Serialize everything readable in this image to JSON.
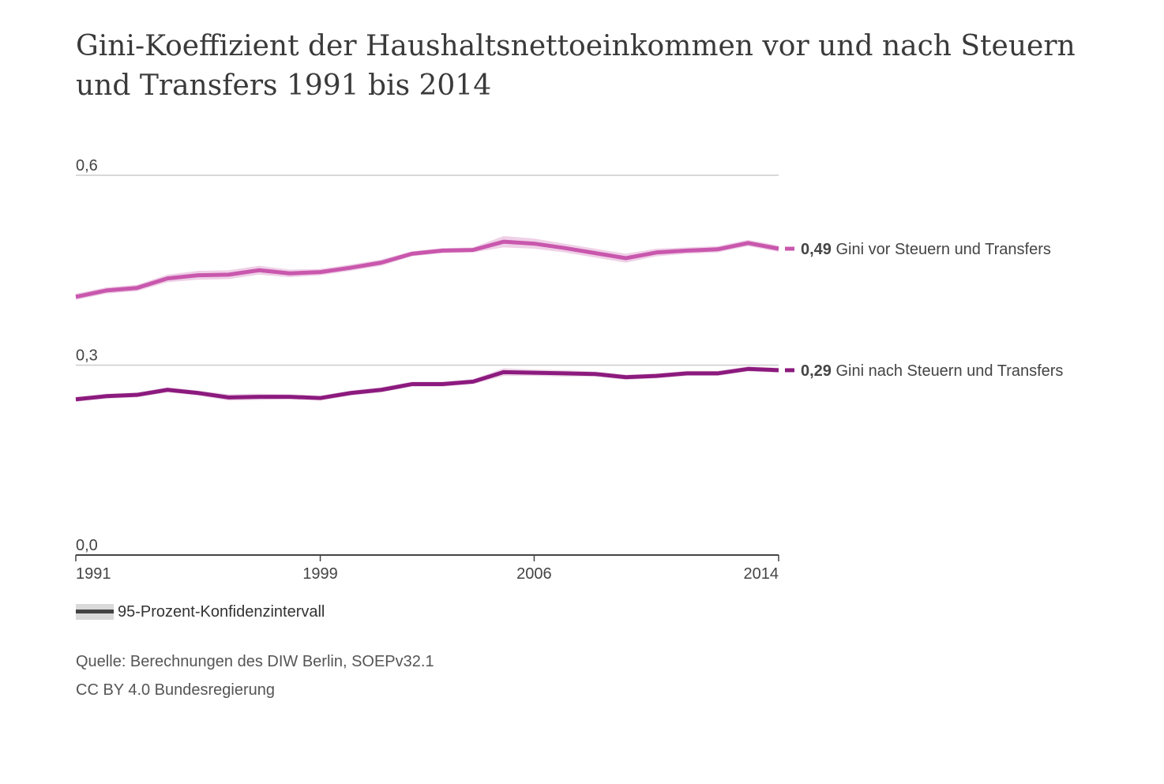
{
  "title": "Gini-Koeffizient der Haushaltsnettoeinkommen vor und nach Steuern und Transfers 1991 bis 2014",
  "colors": {
    "before": "#c957ad",
    "before_band": "#efd0e7",
    "after": "#8c1a7e",
    "after_band": "#ecd3e6",
    "grid": "#cccccc",
    "axis": "#444444",
    "text": "#444444"
  },
  "chart_data": {
    "type": "line",
    "title": "Gini-Koeffizient der Haushaltsnettoeinkommen vor und nach Steuern und Transfers 1991 bis 2014",
    "xlabel": "",
    "ylabel": "",
    "x": [
      1991,
      1992,
      1993,
      1994,
      1995,
      1996,
      1997,
      1998,
      1999,
      2000,
      2001,
      2002,
      2003,
      2004,
      2005,
      2006,
      2007,
      2008,
      2009,
      2010,
      2011,
      2012,
      2013,
      2014
    ],
    "xlim": [
      1991,
      2014
    ],
    "ylim": [
      0,
      0.6
    ],
    "yticks": [
      0.0,
      0.3,
      0.6
    ],
    "ytick_labels": [
      "0,0",
      "0,3",
      "0,6"
    ],
    "xticks": [
      1991,
      1999,
      2006,
      2014
    ],
    "xtick_labels": [
      "1991",
      "1999",
      "2006",
      "2014"
    ],
    "grid": true,
    "series": [
      {
        "name": "Gini vor Steuern und Transfers",
        "value_label": "0,49",
        "values": [
          0.408,
          0.418,
          0.422,
          0.437,
          0.442,
          0.443,
          0.45,
          0.445,
          0.447,
          0.454,
          0.462,
          0.476,
          0.481,
          0.482,
          0.495,
          0.492,
          0.485,
          0.477,
          0.469,
          0.478,
          0.481,
          0.483,
          0.493,
          0.484
        ],
        "ci_halfwidth": [
          0.005,
          0.005,
          0.005,
          0.006,
          0.007,
          0.007,
          0.007,
          0.006,
          0.005,
          0.005,
          0.005,
          0.004,
          0.004,
          0.004,
          0.009,
          0.008,
          0.007,
          0.007,
          0.007,
          0.006,
          0.005,
          0.005,
          0.005,
          0.005
        ]
      },
      {
        "name": "Gini nach Steuern und Transfers",
        "value_label": "0,29",
        "values": [
          0.246,
          0.251,
          0.253,
          0.261,
          0.256,
          0.249,
          0.25,
          0.25,
          0.248,
          0.256,
          0.261,
          0.27,
          0.27,
          0.274,
          0.289,
          0.288,
          0.287,
          0.286,
          0.281,
          0.283,
          0.287,
          0.287,
          0.294,
          0.292
        ],
        "ci_halfwidth": [
          0.004,
          0.004,
          0.004,
          0.004,
          0.004,
          0.005,
          0.005,
          0.004,
          0.004,
          0.004,
          0.004,
          0.004,
          0.004,
          0.004,
          0.006,
          0.005,
          0.005,
          0.004,
          0.004,
          0.004,
          0.004,
          0.004,
          0.004,
          0.004
        ]
      }
    ],
    "legend": {
      "band_label": "95-Prozent-Konfidenzintervall"
    }
  },
  "footer": {
    "source": "Quelle: Berechnungen des DIW Berlin, SOEPv32.1",
    "license": "CC BY 4.0 Bundesregierung"
  }
}
